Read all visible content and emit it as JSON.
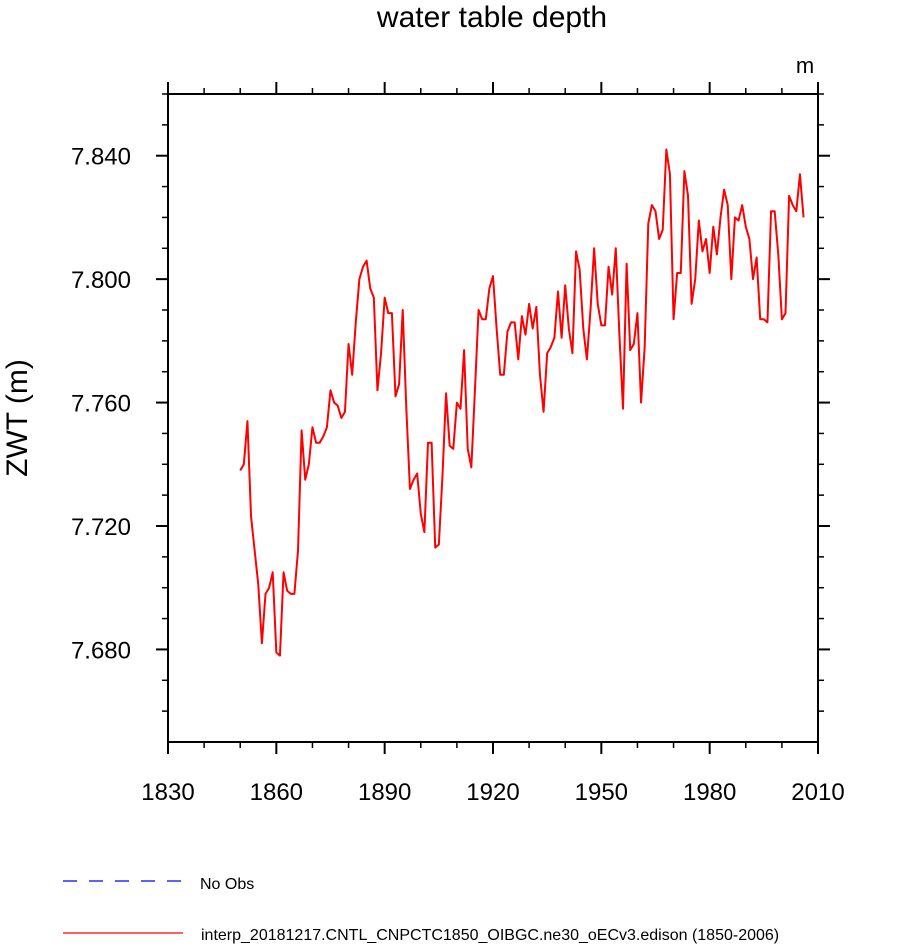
{
  "chart_data": {
    "type": "line",
    "title": "water table depth",
    "unit_label": "m",
    "ylabel": "ZWT  (m)",
    "xlabel": "",
    "xlim": [
      1830,
      2010
    ],
    "ylim": [
      7.65,
      7.86
    ],
    "x_ticks": [
      1830,
      1860,
      1890,
      1920,
      1950,
      1980,
      2010
    ],
    "x_tick_labels": [
      "1830",
      "1860",
      "1890",
      "1920",
      "1950",
      "1980",
      "2010"
    ],
    "y_ticks": [
      7.68,
      7.72,
      7.76,
      7.8,
      7.84
    ],
    "y_tick_labels": [
      "7.680",
      "7.720",
      "7.760",
      "7.800",
      "7.840"
    ],
    "grid": false,
    "legend_position": "bottom",
    "legend": [
      {
        "label": "No Obs",
        "color": "#0000ff",
        "style": "dashed"
      },
      {
        "label": "interp_20181217.CNTL_CNPCTC1850_OIBGC.ne30_oECv3.edison (1850-2006)",
        "color": "#ff0000",
        "style": "solid"
      }
    ],
    "series": [
      {
        "color": "#ff0000",
        "x": [
          1850,
          1851,
          1852,
          1853,
          1854,
          1855,
          1856,
          1857,
          1858,
          1859,
          1860,
          1861,
          1862,
          1863,
          1864,
          1865,
          1866,
          1867,
          1868,
          1869,
          1870,
          1871,
          1872,
          1873,
          1874,
          1875,
          1876,
          1877,
          1878,
          1879,
          1880,
          1881,
          1882,
          1883,
          1884,
          1885,
          1886,
          1887,
          1888,
          1889,
          1890,
          1891,
          1892,
          1893,
          1894,
          1895,
          1896,
          1897,
          1898,
          1899,
          1900,
          1901,
          1902,
          1903,
          1904,
          1905,
          1906,
          1907,
          1908,
          1909,
          1910,
          1911,
          1912,
          1913,
          1914,
          1915,
          1916,
          1917,
          1918,
          1919,
          1920,
          1921,
          1922,
          1923,
          1924,
          1925,
          1926,
          1927,
          1928,
          1929,
          1930,
          1931,
          1932,
          1933,
          1934,
          1935,
          1936,
          1937,
          1938,
          1939,
          1940,
          1941,
          1942,
          1943,
          1944,
          1945,
          1946,
          1947,
          1948,
          1949,
          1950,
          1951,
          1952,
          1953,
          1954,
          1955,
          1956,
          1957,
          1958,
          1959,
          1960,
          1961,
          1962,
          1963,
          1964,
          1965,
          1966,
          1967,
          1968,
          1969,
          1970,
          1971,
          1972,
          1973,
          1974,
          1975,
          1976,
          1977,
          1978,
          1979,
          1980,
          1981,
          1982,
          1983,
          1984,
          1985,
          1986,
          1987,
          1988,
          1989,
          1990,
          1991,
          1992,
          1993,
          1994,
          1995,
          1996,
          1997,
          1998,
          1999,
          2000,
          2001,
          2002,
          2003,
          2004,
          2005,
          2006
        ],
        "values": [
          7.738,
          7.74,
          7.754,
          7.723,
          7.712,
          7.701,
          7.682,
          7.698,
          7.7,
          7.705,
          7.679,
          7.678,
          7.705,
          7.699,
          7.698,
          7.698,
          7.712,
          7.751,
          7.735,
          7.74,
          7.752,
          7.747,
          7.747,
          7.749,
          7.752,
          7.764,
          7.76,
          7.759,
          7.755,
          7.757,
          7.779,
          7.769,
          7.786,
          7.8,
          7.804,
          7.806,
          7.797,
          7.794,
          7.764,
          7.776,
          7.794,
          7.789,
          7.789,
          7.762,
          7.766,
          7.79,
          7.758,
          7.732,
          7.735,
          7.737,
          7.724,
          7.718,
          7.747,
          7.747,
          7.713,
          7.714,
          7.736,
          7.763,
          7.746,
          7.745,
          7.76,
          7.758,
          7.777,
          7.745,
          7.739,
          7.764,
          7.79,
          7.787,
          7.787,
          7.797,
          7.801,
          7.784,
          7.769,
          7.769,
          7.783,
          7.786,
          7.786,
          7.774,
          7.788,
          7.782,
          7.792,
          7.784,
          7.791,
          7.769,
          7.757,
          7.776,
          7.778,
          7.781,
          7.796,
          7.781,
          7.798,
          7.784,
          7.776,
          7.809,
          7.803,
          7.784,
          7.774,
          7.79,
          7.81,
          7.792,
          7.785,
          7.785,
          7.804,
          7.795,
          7.81,
          7.782,
          7.758,
          7.805,
          7.777,
          7.779,
          7.789,
          7.76,
          7.778,
          7.818,
          7.824,
          7.822,
          7.813,
          7.816,
          7.842,
          7.834,
          7.787,
          7.802,
          7.802,
          7.835,
          7.827,
          7.792,
          7.8,
          7.819,
          7.809,
          7.813,
          7.802,
          7.817,
          7.808,
          7.82,
          7.829,
          7.824,
          7.8,
          7.82,
          7.819,
          7.824,
          7.817,
          7.813,
          7.8,
          7.807,
          7.787,
          7.787,
          7.786,
          7.822,
          7.822,
          7.808,
          7.787,
          7.789,
          7.827,
          7.824,
          7.822,
          7.834,
          7.82
        ]
      }
    ]
  }
}
